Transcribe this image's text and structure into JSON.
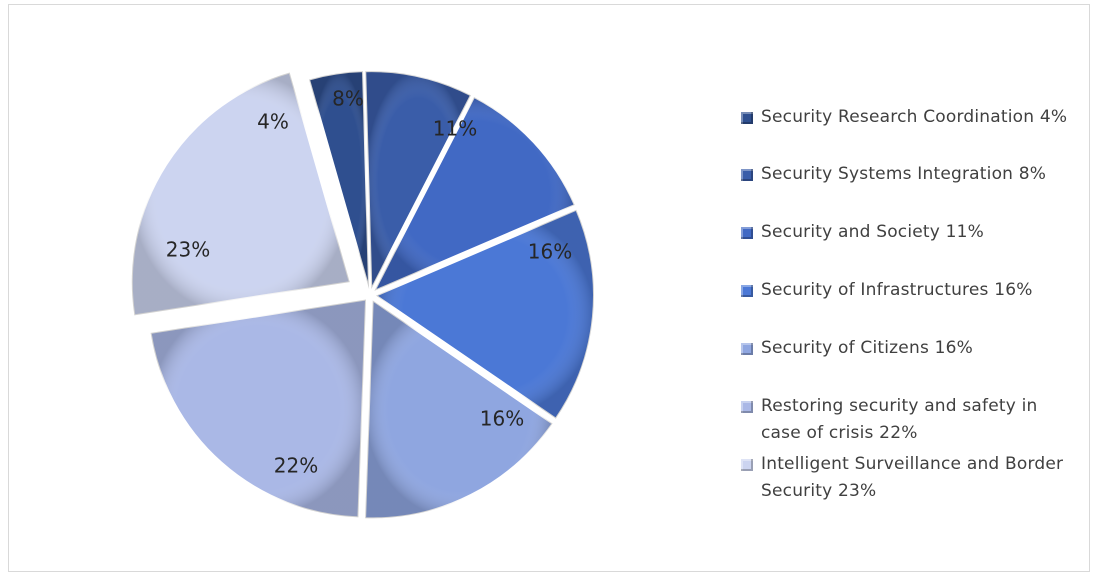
{
  "chart_data": {
    "type": "pie",
    "title": "",
    "slices": [
      {
        "name": "Security Research Coordination",
        "value": 4,
        "label": "4%",
        "legend": "Security Research Coordination 4%",
        "color": "#2f4f8f"
      },
      {
        "name": "Security Systems Integration",
        "value": 8,
        "label": "8%",
        "legend": "Security Systems Integration 8%",
        "color": "#3a5da9"
      },
      {
        "name": "Security and Society",
        "value": 11,
        "label": "11%",
        "legend": "Security and Society 11%",
        "color": "#4169c4"
      },
      {
        "name": "Security of Infrastructures",
        "value": 16,
        "label": "16%",
        "legend": "Security of Infrastructures 16%",
        "color": "#4b78d6"
      },
      {
        "name": "Security of Citizens",
        "value": 16,
        "label": "16%",
        "legend": "Security of Citizens 16%",
        "color": "#8fa6e0"
      },
      {
        "name": "Restoring security and safety in case of crisis",
        "value": 22,
        "label": "22%",
        "legend": "Restoring security and safety in case of crisis 22%",
        "color": "#aab8e6"
      },
      {
        "name": "Intelligent Surveillance and Border Security",
        "value": 23,
        "label": "23%",
        "legend": "Intelligent Surveillance and Border Security 23%",
        "color": "#ccd4f0"
      }
    ],
    "legend_position": "right"
  }
}
